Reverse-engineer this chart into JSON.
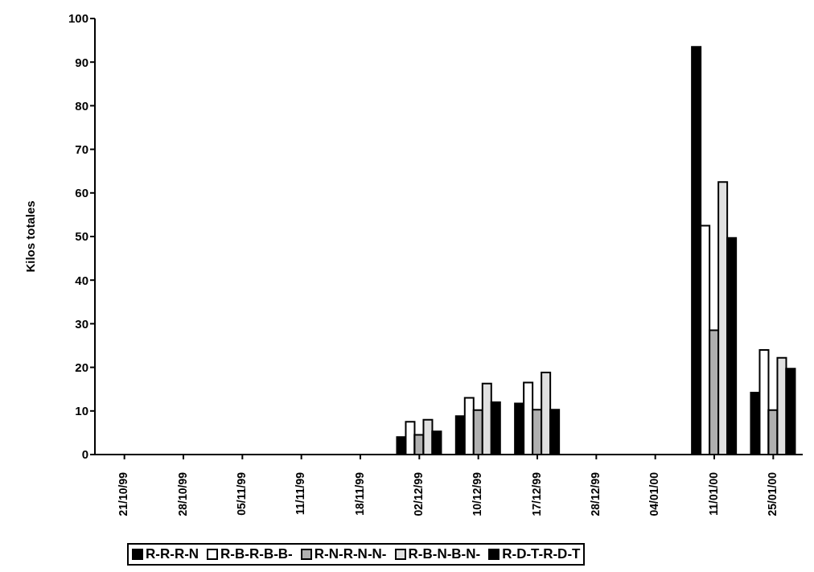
{
  "chart_data": {
    "type": "bar",
    "ylabel": "Kilos totales",
    "categories": [
      "21/10/99",
      "28/10/99",
      "05/11/99",
      "11/11/99",
      "18/11/99",
      "02/12/99",
      "10/12/99",
      "17/12/99",
      "28/12/99",
      "04/01/00",
      "11/01/00",
      "25/01/00"
    ],
    "series": [
      {
        "name": "R-R-R-N",
        "color": "#000000",
        "values": [
          null,
          null,
          null,
          null,
          null,
          4,
          8.8,
          11.7,
          null,
          null,
          93.5,
          14.2
        ]
      },
      {
        "name": "R-B-R-B-B-",
        "color": "#ffffff",
        "values": [
          null,
          null,
          null,
          null,
          null,
          7.5,
          13,
          16.5,
          null,
          null,
          52.5,
          24
        ]
      },
      {
        "name": "R-N-R-N-N-",
        "color": "#b0b0b0",
        "values": [
          null,
          null,
          null,
          null,
          null,
          4.5,
          10.2,
          10.3,
          null,
          null,
          28.5,
          10.2
        ]
      },
      {
        "name": "R-B-N-B-N-",
        "color": "#e0e0e0",
        "values": [
          null,
          null,
          null,
          null,
          null,
          8,
          16.3,
          18.8,
          null,
          null,
          62.5,
          22.2
        ]
      },
      {
        "name": "R-D-T-R-D-T",
        "color": "#000000",
        "values": [
          null,
          null,
          null,
          null,
          null,
          5.3,
          12,
          10.3,
          null,
          null,
          49.7,
          19.7
        ]
      }
    ],
    "ylim": [
      0,
      100
    ],
    "yticks": [
      0,
      10,
      20,
      30,
      40,
      50,
      60,
      70,
      80,
      90,
      100
    ],
    "grid": false,
    "legend": "bottom"
  }
}
